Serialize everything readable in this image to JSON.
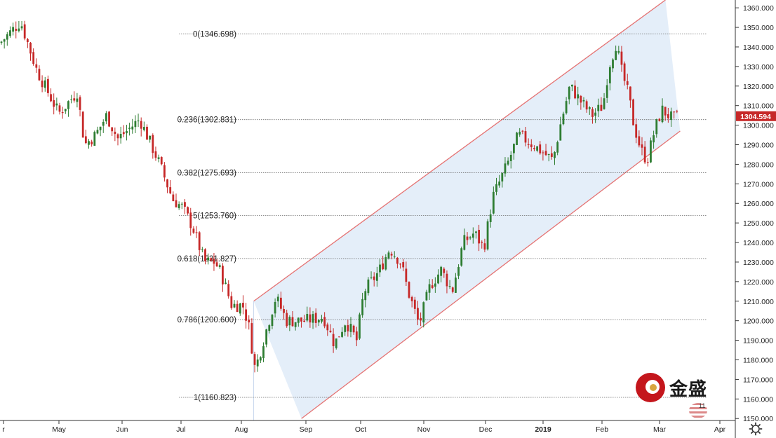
{
  "chart_data": {
    "type": "candlestick",
    "y_axis": {
      "ticks": [
        "1360.000",
        "1350.000",
        "1340.000",
        "1330.000",
        "1320.000",
        "1310.000",
        "1300.000",
        "1290.000",
        "1280.000",
        "1270.000",
        "1260.000",
        "1250.000",
        "1240.000",
        "1230.000",
        "1220.000",
        "1210.000",
        "1200.000",
        "1190.000",
        "1180.000",
        "1170.000",
        "1160.000",
        "1150.000"
      ],
      "range": [
        1149,
        1364
      ]
    },
    "x_axis": {
      "ticks": [
        "r",
        "May",
        "Jun",
        "Jul",
        "Aug",
        "Sep",
        "Oct",
        "Nov",
        "Dec",
        "2019",
        "Feb",
        "Mar",
        "Apr"
      ]
    },
    "fibonacci_levels": [
      {
        "label": "0(1346.698)",
        "value": 1346.698
      },
      {
        "label": "0.236(1302.831)",
        "value": 1302.831
      },
      {
        "label": "0.382(1275.693)",
        "value": 1275.693
      },
      {
        "label": "5(1253.760)",
        "value": 1253.76
      },
      {
        "label": "0.618(1231.827)",
        "value": 1231.827
      },
      {
        "label": "0.786(1200.600)",
        "value": 1200.6
      },
      {
        "label": "1(1160.823)",
        "value": 1160.823
      }
    ],
    "current_price": "1304.594",
    "trend_channel": {
      "upper": [
        [
          0.345,
          1210
        ],
        [
          0.905,
          1364
        ]
      ],
      "lower": [
        [
          0.41,
          1150
        ],
        [
          0.925,
          1297
        ]
      ]
    },
    "anchors": [
      [
        0.0,
        1342
      ],
      [
        0.028,
        1353
      ],
      [
        0.05,
        1328
      ],
      [
        0.08,
        1306
      ],
      [
        0.105,
        1317
      ],
      [
        0.115,
        1290
      ],
      [
        0.13,
        1295
      ],
      [
        0.145,
        1305
      ],
      [
        0.16,
        1293
      ],
      [
        0.175,
        1298
      ],
      [
        0.19,
        1303
      ],
      [
        0.215,
        1282
      ],
      [
        0.235,
        1262
      ],
      [
        0.248,
        1258
      ],
      [
        0.262,
        1248
      ],
      [
        0.278,
        1230
      ],
      [
        0.292,
        1230
      ],
      [
        0.3,
        1225
      ],
      [
        0.315,
        1208
      ],
      [
        0.33,
        1208
      ],
      [
        0.338,
        1198
      ],
      [
        0.347,
        1175
      ],
      [
        0.368,
        1203
      ],
      [
        0.375,
        1212
      ],
      [
        0.39,
        1200
      ],
      [
        0.415,
        1200
      ],
      [
        0.44,
        1202
      ],
      [
        0.455,
        1188
      ],
      [
        0.47,
        1200
      ],
      [
        0.485,
        1190
      ],
      [
        0.495,
        1215
      ],
      [
        0.515,
        1225
      ],
      [
        0.53,
        1237
      ],
      [
        0.545,
        1230
      ],
      [
        0.555,
        1215
      ],
      [
        0.57,
        1198
      ],
      [
        0.585,
        1218
      ],
      [
        0.6,
        1226
      ],
      [
        0.615,
        1215
      ],
      [
        0.63,
        1240
      ],
      [
        0.645,
        1245
      ],
      [
        0.658,
        1237
      ],
      [
        0.67,
        1263
      ],
      [
        0.69,
        1280
      ],
      [
        0.705,
        1295
      ],
      [
        0.725,
        1290
      ],
      [
        0.742,
        1285
      ],
      [
        0.752,
        1282
      ],
      [
        0.762,
        1300
      ],
      [
        0.775,
        1320
      ],
      [
        0.79,
        1312
      ],
      [
        0.805,
        1305
      ],
      [
        0.82,
        1310
      ],
      [
        0.828,
        1330
      ],
      [
        0.838,
        1342
      ],
      [
        0.845,
        1328
      ],
      [
        0.855,
        1315
      ],
      [
        0.862,
        1300
      ],
      [
        0.872,
        1287
      ],
      [
        0.88,
        1282
      ],
      [
        0.89,
        1297
      ],
      [
        0.9,
        1308
      ],
      [
        0.915,
        1303
      ],
      [
        0.922,
        1304.6
      ]
    ]
  },
  "colors": {
    "up": "#2e7d32",
    "down": "#c62828",
    "channel_line": "#e57373",
    "channel_fill": "#dbe8f7",
    "fib_line": "#6b6b6b",
    "price_badge": "#c62828"
  },
  "branding": {
    "logo_text": "金盛",
    "flag_text": "11"
  },
  "icons": {
    "settings": "gear-icon"
  }
}
